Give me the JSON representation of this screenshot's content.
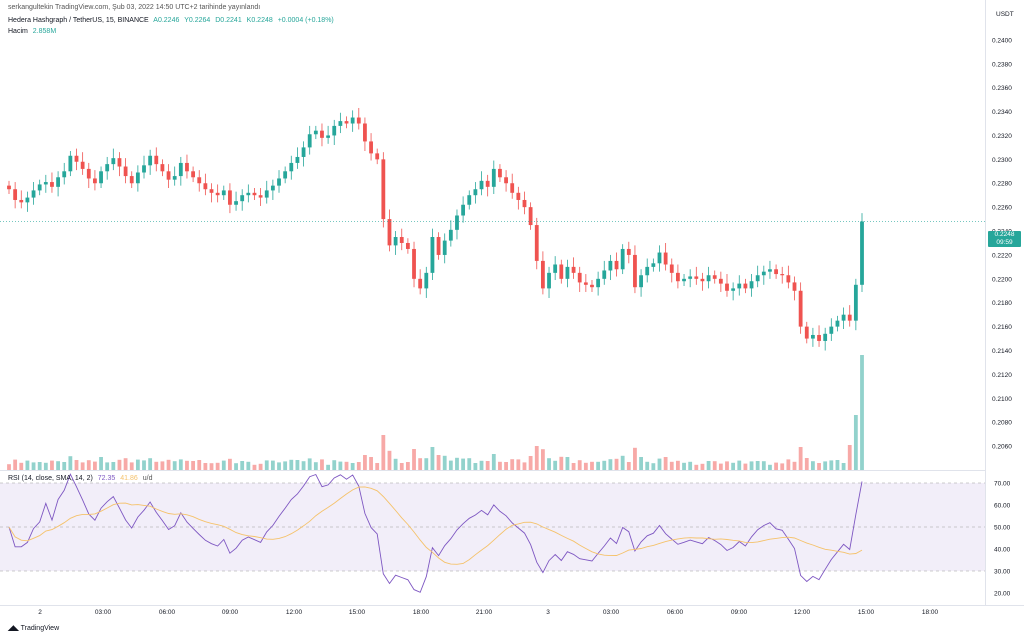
{
  "header": {
    "published": "serkangultekin TradingView.com, Şub 03, 2022 14:50 UTC+2 tarihinde yayınlandı",
    "symbol": "Hedera Hashgraph / TetherUS, 15, BINANCE",
    "open": "A0.2246",
    "high": "Y0.2264",
    "low": "D0.2241",
    "close": "K0.2248",
    "change": "+0.0004 (+0.18%)",
    "volume_label": "Hacim",
    "volume_value": "2.858M"
  },
  "currency": "USDT",
  "last_price": {
    "value": "0.2248",
    "countdown": "09:59"
  },
  "rsi_legend": {
    "label": "RSI (14, close, SMA, 14, 2)",
    "rsi": "72.35",
    "sma": "41.86",
    "bands": "u/d"
  },
  "footer": {
    "brand": "TradingView"
  },
  "colors": {
    "up": "#26a69a",
    "down": "#ef5350",
    "rsi": "#7e57c2",
    "rsi_ma": "#f5c26b",
    "band_fill": "#ede7f6"
  },
  "chart_data": [
    {
      "type": "candlestick",
      "title": "Hedera Hashgraph / TetherUS, 15, BINANCE",
      "ylim": [
        0.204,
        0.2425
      ],
      "y_ticks": [
        "0.2400",
        "0.2380",
        "0.2360",
        "0.2340",
        "0.2320",
        "0.2300",
        "0.2280",
        "0.2260",
        "0.2240",
        "0.2220",
        "0.2200",
        "0.2180",
        "0.2160",
        "0.2140",
        "0.2120",
        "0.2100",
        "0.2080",
        "0.2060"
      ],
      "x_ticks": [
        "2",
        "03:00",
        "06:00",
        "09:00",
        "12:00",
        "15:00",
        "18:00",
        "21:00",
        "3",
        "03:00",
        "06:00",
        "09:00",
        "12:00",
        "15:00",
        "18:00"
      ],
      "closes": [
        0.2275,
        0.2266,
        0.2264,
        0.2268,
        0.2274,
        0.2279,
        0.2281,
        0.2277,
        0.2285,
        0.229,
        0.2303,
        0.2298,
        0.2292,
        0.2284,
        0.228,
        0.229,
        0.2296,
        0.2301,
        0.2294,
        0.2286,
        0.228,
        0.2289,
        0.2295,
        0.2303,
        0.2296,
        0.229,
        0.2283,
        0.2286,
        0.2297,
        0.229,
        0.2285,
        0.228,
        0.2275,
        0.2272,
        0.227,
        0.2274,
        0.2262,
        0.2265,
        0.227,
        0.2272,
        0.227,
        0.2268,
        0.2274,
        0.2278,
        0.2284,
        0.229,
        0.2297,
        0.2302,
        0.231,
        0.2321,
        0.2324,
        0.2318,
        0.232,
        0.2328,
        0.2332,
        0.233,
        0.2335,
        0.233,
        0.2315,
        0.2305,
        0.23,
        0.225,
        0.2228,
        0.2235,
        0.223,
        0.2225,
        0.22,
        0.2192,
        0.2205,
        0.2235,
        0.222,
        0.2232,
        0.2241,
        0.2253,
        0.2262,
        0.227,
        0.2275,
        0.2282,
        0.2277,
        0.2292,
        0.2285,
        0.228,
        0.2272,
        0.2266,
        0.226,
        0.2245,
        0.2215,
        0.2192,
        0.2205,
        0.2212,
        0.22,
        0.221,
        0.2205,
        0.2197,
        0.2195,
        0.2193,
        0.22,
        0.2207,
        0.2215,
        0.2208,
        0.2225,
        0.222,
        0.2193,
        0.2203,
        0.221,
        0.2213,
        0.2222,
        0.2212,
        0.2205,
        0.2198,
        0.22,
        0.2202,
        0.22,
        0.2198,
        0.2203,
        0.22,
        0.2196,
        0.219,
        0.2192,
        0.2196,
        0.2192,
        0.2198,
        0.2203,
        0.2206,
        0.2208,
        0.2204,
        0.2203,
        0.2197,
        0.219,
        0.216,
        0.215,
        0.2153,
        0.2148,
        0.2154,
        0.216,
        0.2165,
        0.217,
        0.2165,
        0.2195,
        0.2248
      ],
      "volume": {
        "label": "Hacim",
        "last": "2.858M"
      }
    },
    {
      "type": "line",
      "title": "RSI (14, close, SMA, 14, 2)",
      "ylim": [
        15,
        75
      ],
      "y_ticks": [
        "70.00",
        "60.00",
        "50.00",
        "40.00",
        "30.00",
        "20.00"
      ],
      "bands": [
        70,
        50,
        30
      ],
      "series": [
        {
          "name": "RSI",
          "last": "72.35"
        },
        {
          "name": "SMA",
          "last": "41.86"
        }
      ]
    }
  ]
}
